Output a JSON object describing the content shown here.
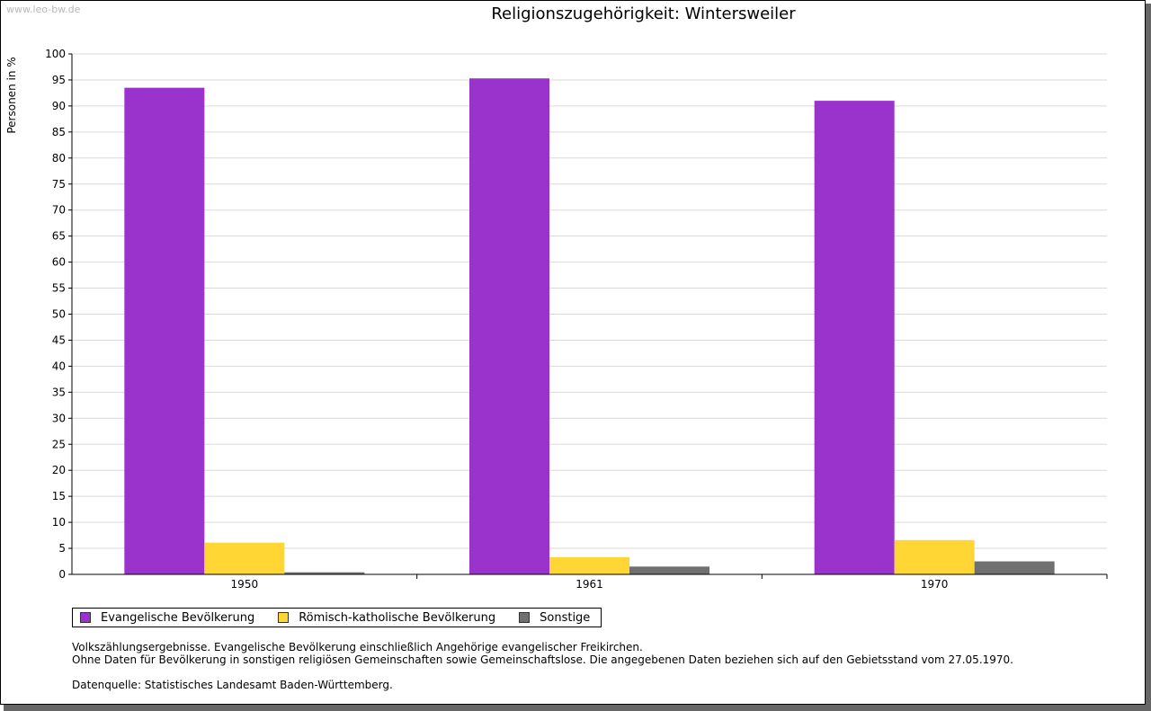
{
  "watermark": "www.leo-bw.de",
  "chart_data": {
    "type": "bar",
    "title": "Religionszugehörigkeit: Wintersweiler",
    "xlabel": "",
    "ylabel": "Personen in %",
    "ylim": [
      0,
      100
    ],
    "ytick_step": 5,
    "grid": true,
    "legend_position": "bottom-left",
    "categories": [
      "1950",
      "1961",
      "1970"
    ],
    "series": [
      {
        "name": "Evangelische Bevölkerung",
        "color": "#9933cc",
        "values": [
          93.5,
          95.3,
          91.0
        ]
      },
      {
        "name": "Römisch-katholische Bevölkerung",
        "color": "#ffd633",
        "values": [
          6.1,
          3.3,
          6.6
        ]
      },
      {
        "name": "Sonstige",
        "color": "#707070",
        "values": [
          0.4,
          1.5,
          2.5
        ]
      }
    ]
  },
  "notes": {
    "line1": "Volkszählungsergebnisse. Evangelische Bevölkerung einschließlich Angehörige evangelischer Freikirchen.",
    "line2": "Ohne Daten für Bevölkerung in sonstigen religiösen Gemeinschaften sowie Gemeinschaftslose. Die angegebenen Daten beziehen sich auf den Gebietsstand vom 27.05.1970.",
    "source": "Datenquelle: Statistisches Landesamt Baden-Württemberg."
  }
}
